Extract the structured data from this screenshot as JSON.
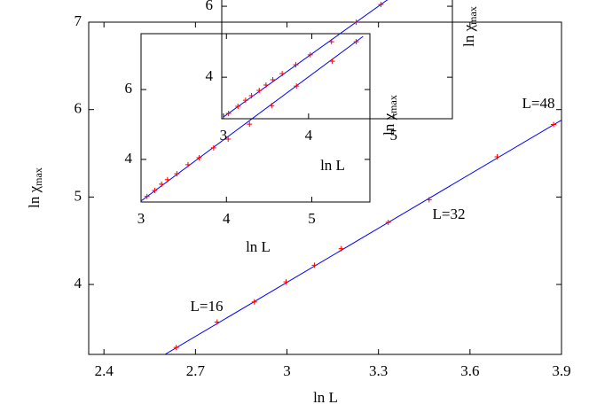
{
  "chart_data": [
    {
      "type": "scatter",
      "xlabel": "ln L",
      "ylabel": "ln χ",
      "ylabel_sub": "max",
      "x": [
        2.637,
        2.771,
        2.893,
        2.997,
        3.09,
        3.178,
        3.332,
        3.466,
        3.689,
        3.874
      ],
      "values": [
        3.28,
        3.57,
        3.8,
        4.03,
        4.22,
        4.41,
        4.71,
        4.97,
        5.46,
        5.83
      ],
      "color": "#ff0000",
      "fit": {
        "x": [
          2.6,
          3.9
        ],
        "values": [
          3.2,
          5.88
        ],
        "color": "#0000ff"
      },
      "xlim": [
        2.35,
        3.9
      ],
      "ylim": [
        3.2,
        7
      ],
      "xticks": [
        2.4,
        2.7,
        3,
        3.3,
        3.6,
        3.9
      ],
      "yticks": [
        4,
        5,
        6,
        7
      ],
      "annotations": [
        "L=16",
        "L=32",
        "L=48"
      ]
    },
    {
      "type": "scatter",
      "xlabel": "ln L",
      "ylabel": "ln χ",
      "ylabel_sub": "max",
      "x": [
        3.07,
        3.16,
        3.24,
        3.31,
        3.42,
        3.55,
        3.68,
        3.85,
        4.02,
        4.27,
        4.53,
        4.82,
        5.24,
        5.52
      ],
      "values": [
        2.94,
        3.11,
        3.29,
        3.42,
        3.59,
        3.85,
        4.05,
        4.33,
        4.58,
        5.01,
        5.54,
        6.1,
        6.81,
        7.37
      ],
      "color": "#ff0000",
      "fit": {
        "x": [
          3,
          5.6
        ],
        "values": [
          2.81,
          7.52
        ],
        "color": "#0000ff"
      },
      "xlim": [
        3,
        5.68
      ],
      "ylim": [
        2.78,
        7.6
      ],
      "xticks": [
        3,
        4,
        5
      ],
      "yticks": [
        4,
        6
      ]
    },
    {
      "type": "scatter",
      "xlabel": "ln L",
      "ylabel": "ln χ",
      "ylabel_sub": "max",
      "x": [
        3.06,
        3.17,
        3.26,
        3.33,
        3.42,
        3.5,
        3.58,
        3.69,
        3.85,
        4.02,
        4.27,
        4.56,
        4.85
      ],
      "values": [
        2.98,
        3.18,
        3.35,
        3.48,
        3.63,
        3.78,
        3.93,
        4.1,
        4.35,
        4.63,
        5.0,
        5.55,
        6.05
      ],
      "color": "#ff0000",
      "fit": {
        "x": [
          3,
          5.69
        ],
        "values": [
          2.88,
          7.49
        ],
        "color": "#0000ff"
      },
      "xlim": [
        2.98,
        5.69
      ],
      "ylim": [
        2.83,
        7.55
      ],
      "xticks": [
        3,
        4,
        5
      ],
      "yticks": [
        4,
        6
      ]
    }
  ]
}
